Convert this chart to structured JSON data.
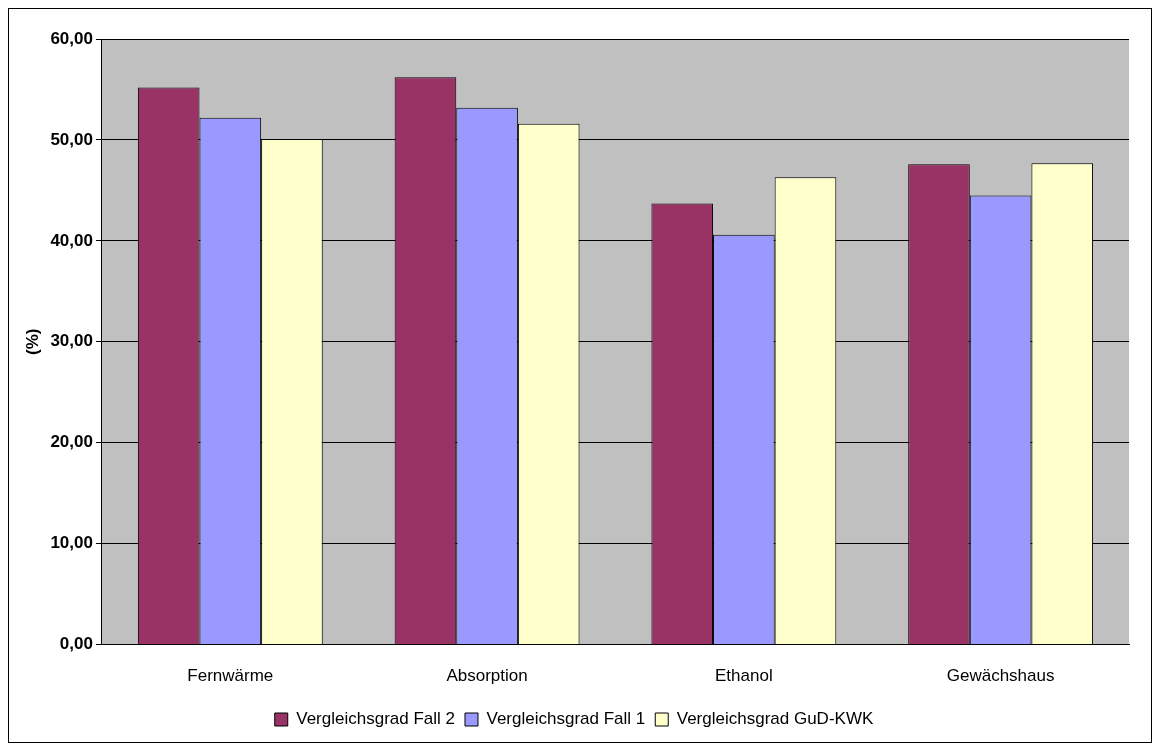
{
  "chart_data": {
    "type": "bar",
    "ylabel": "(%)",
    "categories": [
      "Fernwärme",
      "Absorption",
      "Ethanol",
      "Gewächshaus"
    ],
    "series": [
      {
        "name": "Vergleichsgrad Fall 2",
        "color": "#993366",
        "values": [
          55.2,
          56.2,
          43.7,
          47.6
        ]
      },
      {
        "name": "Vergleichsgrad Fall 1",
        "color": "#9999ff",
        "values": [
          52.2,
          53.2,
          40.6,
          44.5
        ]
      },
      {
        "name": "Vergleichsgrad GuD-KWK",
        "color": "#ffffcc",
        "values": [
          50.1,
          51.6,
          46.3,
          47.7
        ]
      }
    ],
    "ylim": [
      0,
      60
    ],
    "yticks": [
      {
        "value": 0,
        "label": "0,00"
      },
      {
        "value": 10,
        "label": "10,00"
      },
      {
        "value": 20,
        "label": "20,00"
      },
      {
        "value": 30,
        "label": "30,00"
      },
      {
        "value": 40,
        "label": "40,00"
      },
      {
        "value": 50,
        "label": "50,00"
      },
      {
        "value": 60,
        "label": "60,00"
      }
    ],
    "grid": "y",
    "legend": "bottom"
  }
}
